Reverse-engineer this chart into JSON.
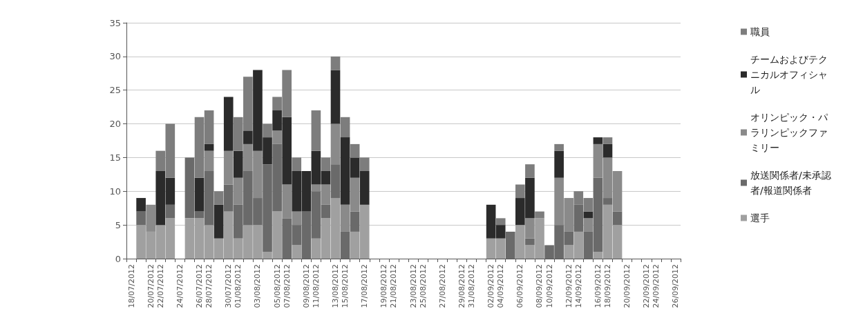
{
  "chart_data": {
    "type": "bar",
    "stacked": true,
    "categories": [
      "18/07/2012",
      null,
      "20/07/2012",
      "22/07/2012",
      null,
      "24/07/2012",
      null,
      "26/07/2012",
      "28/07/2012",
      null,
      "30/07/2012",
      "01/08/2012",
      null,
      "03/08/2012",
      null,
      "05/08/2012",
      "07/08/2012",
      null,
      "09/08/2012",
      "11/08/2012",
      null,
      "13/08/2012",
      "15/08/2012",
      null,
      "17/08/2012",
      null,
      "19/08/2012",
      "21/08/2012",
      null,
      "23/08/2012",
      "25/08/2012",
      null,
      "27/08/2012",
      null,
      "29/08/2012",
      "31/08/2012",
      null,
      "02/09/2012",
      "04/09/2012",
      null,
      "06/09/2012",
      null,
      "08/09/2012",
      "10/09/2012",
      null,
      "12/09/2012",
      "14/09/2012",
      null,
      "16/09/2012",
      "18/09/2012",
      null,
      "20/09/2012",
      null,
      "22/09/2012",
      "24/09/2012",
      null,
      "26/09/2012"
    ],
    "series": [
      {
        "name": "選手",
        "color": "#a0a0a0",
        "values": [
          0,
          5,
          4,
          5,
          6,
          0,
          6,
          6,
          5,
          3,
          7,
          3,
          5,
          5,
          1,
          7,
          0,
          2,
          0,
          3,
          6,
          9,
          0,
          4,
          8,
          0,
          0,
          0,
          0,
          0,
          0,
          0,
          0,
          0,
          0,
          0,
          0,
          3,
          3,
          0,
          5,
          2,
          6,
          0,
          0,
          2,
          4,
          0,
          1,
          8,
          5,
          0,
          0,
          0,
          0,
          0,
          0
        ]
      },
      {
        "name": "放送関係者/未承認者/報道関係者",
        "color": "#6a6a6a",
        "values": [
          0,
          2,
          0,
          0,
          2,
          0,
          9,
          1,
          8,
          0,
          4,
          5,
          8,
          4,
          13,
          10,
          6,
          3,
          7,
          7,
          2,
          5,
          4,
          3,
          0,
          0,
          0,
          0,
          0,
          0,
          0,
          0,
          0,
          0,
          0,
          0,
          0,
          0,
          0,
          4,
          0,
          1,
          0,
          2,
          5,
          2,
          4,
          4,
          11,
          1,
          2,
          0,
          0,
          0,
          0,
          0,
          0
        ]
      },
      {
        "name": "オリンピック・パラリンピックファミリー",
        "color": "#8a8a8a",
        "values": [
          0,
          0,
          4,
          0,
          0,
          0,
          0,
          0,
          3,
          0,
          5,
          4,
          4,
          7,
          0,
          2,
          5,
          2,
          0,
          1,
          3,
          6,
          4,
          5,
          0,
          0,
          0,
          0,
          0,
          0,
          0,
          0,
          0,
          0,
          0,
          0,
          0,
          0,
          0,
          0,
          0,
          3,
          0,
          0,
          7,
          5,
          0,
          2,
          5,
          6,
          6,
          0,
          0,
          0,
          0,
          0,
          0
        ]
      },
      {
        "name": "チームおよびテクニカルオフィシャル",
        "color": "#2b2b2b",
        "values": [
          0,
          2,
          0,
          8,
          4,
          0,
          0,
          5,
          1,
          5,
          8,
          4,
          2,
          12,
          4,
          3,
          10,
          6,
          6,
          5,
          2,
          8,
          10,
          3,
          5,
          0,
          0,
          0,
          0,
          0,
          0,
          0,
          0,
          0,
          0,
          0,
          0,
          5,
          2,
          0,
          4,
          6,
          0,
          0,
          4,
          0,
          0,
          1,
          1,
          2,
          0,
          0,
          0,
          0,
          0,
          0,
          0
        ]
      },
      {
        "name": "職員",
        "color": "#7d7d7d",
        "values": [
          0,
          0,
          0,
          3,
          8,
          0,
          0,
          9,
          5,
          2,
          0,
          5,
          8,
          0,
          2,
          2,
          7,
          2,
          0,
          6,
          2,
          2,
          3,
          2,
          2,
          0,
          0,
          0,
          0,
          0,
          0,
          0,
          0,
          0,
          0,
          0,
          0,
          0,
          1,
          0,
          2,
          2,
          1,
          0,
          1,
          0,
          2,
          2,
          0,
          1,
          0,
          0,
          0,
          0,
          0,
          0,
          0
        ]
      }
    ],
    "ylim": [
      0,
      35
    ],
    "yticks": [
      0,
      5,
      10,
      15,
      20,
      25,
      30,
      35
    ],
    "grid": "y",
    "legend": "right"
  }
}
